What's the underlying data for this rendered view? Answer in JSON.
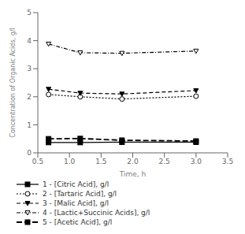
{
  "chart_data": {
    "type": "line",
    "x": [
      0.67,
      1.17,
      1.83,
      3.0
    ],
    "series": [
      {
        "name": "1 - [Citric Acid], g/l",
        "color": "black",
        "values": [
          0.37,
          0.37,
          0.38,
          0.38
        ],
        "marker": "square",
        "line_style": "solid"
      },
      {
        "name": "2 - [Tartaric Acid], g/l",
        "color": "black",
        "values": [
          2.08,
          2.0,
          1.92,
          2.02
        ],
        "marker": "open_circle",
        "line_style": "dotted"
      },
      {
        "name": "3 - [Malic Acid], g/l",
        "color": "black",
        "values": [
          2.27,
          2.13,
          2.1,
          2.22
        ],
        "marker": "triangle_down",
        "line_style": "dashed"
      },
      {
        "name": "4 - [Lactic+Succinic Acids], g/l",
        "color": "black",
        "values": [
          3.88,
          3.57,
          3.55,
          3.63
        ],
        "marker": "open_triangle_down",
        "line_style": "dashdot"
      },
      {
        "name": "5 - [Acetic Acid], g/l",
        "color": "black",
        "values": [
          0.5,
          0.51,
          0.45,
          0.42
        ],
        "marker": "square",
        "line_style": "longdash"
      }
    ],
    "xlabel": "Time, h",
    "ylabel": "Concentration of Organic Acids, g/l",
    "xlim": [
      0.5,
      3.5
    ],
    "ylim": [
      0,
      5
    ],
    "xticks": [
      0.5,
      {
        "value": 1,
        "label": "1.0"
      },
      1.5,
      {
        "value": 2,
        "label": "2.0"
      },
      2.5,
      {
        "value": 3,
        "label": "3.0"
      },
      3.5
    ],
    "yticks": [
      0,
      1,
      2,
      3,
      4,
      5
    ],
    "grid": false,
    "legend": "bottom"
  }
}
